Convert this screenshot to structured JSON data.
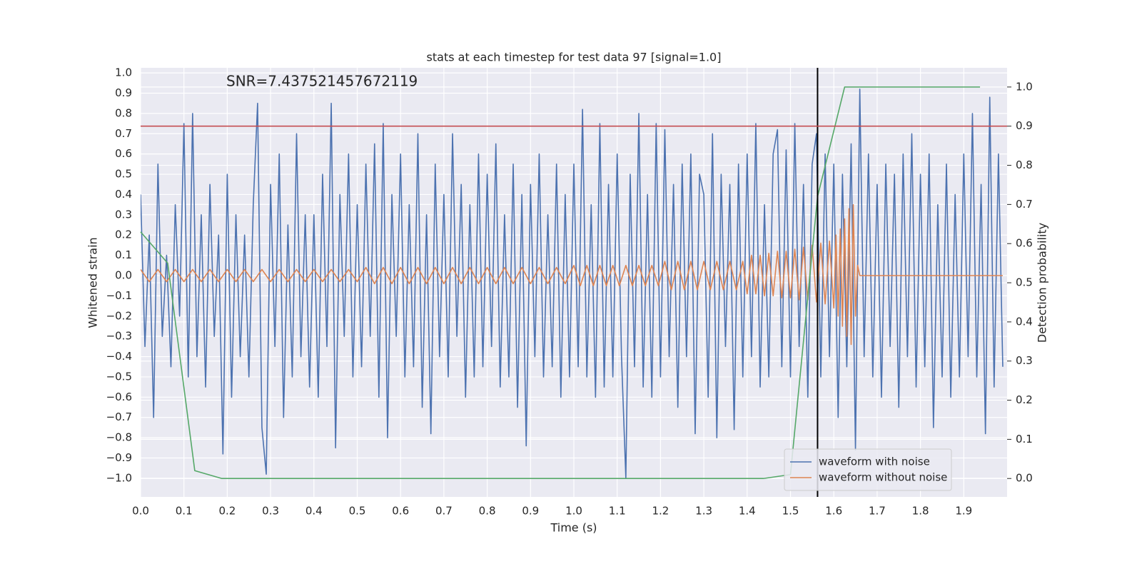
{
  "chart_data": {
    "type": "line",
    "title": "stats at each timestep for test data 97 [signal=1.0]",
    "annotation": "SNR=7.437521457672119",
    "xlabel": "Time (s)",
    "ylabel": "Whitened strain",
    "y2label": "Detection probability",
    "xlim": [
      0,
      2
    ],
    "ylim": [
      -1.092,
      1.025
    ],
    "y2lim": [
      -0.047,
      1.049
    ],
    "grid": true,
    "legend": "lower right",
    "xticks": [
      {
        "value": 0,
        "label": "0.0"
      },
      {
        "value": 0.1,
        "label": "0.1"
      },
      {
        "value": 0.2,
        "label": "0.2"
      },
      {
        "value": 0.3,
        "label": "0.3"
      },
      {
        "value": 0.4,
        "label": "0.4"
      },
      {
        "value": 0.5,
        "label": "0.5"
      },
      {
        "value": 0.6,
        "label": "0.6"
      },
      {
        "value": 0.7,
        "label": "0.7"
      },
      {
        "value": 0.8,
        "label": "0.8"
      },
      {
        "value": 0.9,
        "label": "0.9"
      },
      {
        "value": 1,
        "label": "1.0"
      },
      {
        "value": 1.1,
        "label": "1.1"
      },
      {
        "value": 1.2,
        "label": "1.2"
      },
      {
        "value": 1.3,
        "label": "1.3"
      },
      {
        "value": 1.4,
        "label": "1.4"
      },
      {
        "value": 1.5,
        "label": "1.5"
      },
      {
        "value": 1.6,
        "label": "1.6"
      },
      {
        "value": 1.7,
        "label": "1.7"
      },
      {
        "value": 1.8,
        "label": "1.8"
      },
      {
        "value": 1.9,
        "label": "1.9"
      }
    ],
    "yticks": [
      {
        "value": -1,
        "label": "−1.0"
      },
      {
        "value": -0.9,
        "label": "−0.9"
      },
      {
        "value": -0.8,
        "label": "−0.8"
      },
      {
        "value": -0.7,
        "label": "−0.7"
      },
      {
        "value": -0.6,
        "label": "−0.6"
      },
      {
        "value": -0.5,
        "label": "−0.5"
      },
      {
        "value": -0.4,
        "label": "−0.4"
      },
      {
        "value": -0.3,
        "label": "−0.3"
      },
      {
        "value": -0.2,
        "label": "−0.2"
      },
      {
        "value": -0.1,
        "label": "−0.1"
      },
      {
        "value": 0,
        "label": "0.0"
      },
      {
        "value": 0.1,
        "label": "0.1"
      },
      {
        "value": 0.2,
        "label": "0.2"
      },
      {
        "value": 0.3,
        "label": "0.3"
      },
      {
        "value": 0.4,
        "label": "0.4"
      },
      {
        "value": 0.5,
        "label": "0.5"
      },
      {
        "value": 0.6,
        "label": "0.6"
      },
      {
        "value": 0.7,
        "label": "0.7"
      },
      {
        "value": 0.8,
        "label": "0.8"
      },
      {
        "value": 0.9,
        "label": "0.9"
      },
      {
        "value": 1,
        "label": "1.0"
      }
    ],
    "y2ticks": [
      {
        "value": 0,
        "label": "0.0"
      },
      {
        "value": 0.1,
        "label": "0.1"
      },
      {
        "value": 0.2,
        "label": "0.2"
      },
      {
        "value": 0.3,
        "label": "0.3"
      },
      {
        "value": 0.4,
        "label": "0.4"
      },
      {
        "value": 0.5,
        "label": "0.5"
      },
      {
        "value": 0.6,
        "label": "0.6"
      },
      {
        "value": 0.7,
        "label": "0.7"
      },
      {
        "value": 0.8,
        "label": "0.8"
      },
      {
        "value": 0.9,
        "label": "0.9"
      },
      {
        "value": 1,
        "label": "1.0"
      }
    ],
    "hlines": [
      {
        "axis": "y2",
        "value": 0.9,
        "color": "#c44e52"
      }
    ],
    "vlines": [
      {
        "value": 1.5625,
        "color": "#000000"
      }
    ],
    "series": [
      {
        "name": "waveform with noise",
        "color": "#4c72b0",
        "x": [
          0,
          0.01,
          0.02,
          0.03,
          0.04,
          0.05,
          0.06,
          0.07,
          0.08,
          0.09,
          0.1,
          0.11,
          0.12,
          0.13,
          0.14,
          0.15,
          0.16,
          0.17,
          0.18,
          0.19,
          0.2,
          0.21,
          0.22,
          0.23,
          0.24,
          0.25,
          0.26,
          0.27,
          0.28,
          0.29,
          0.3,
          0.31,
          0.32,
          0.33,
          0.34,
          0.35,
          0.36,
          0.37,
          0.38,
          0.39,
          0.4,
          0.41,
          0.42,
          0.43,
          0.44,
          0.45,
          0.46,
          0.47,
          0.48,
          0.49,
          0.5,
          0.51,
          0.52,
          0.53,
          0.54,
          0.55,
          0.56,
          0.57,
          0.58,
          0.59,
          0.6,
          0.61,
          0.62,
          0.63,
          0.64,
          0.65,
          0.66,
          0.67,
          0.68,
          0.69,
          0.7,
          0.71,
          0.72,
          0.73,
          0.74,
          0.75,
          0.76,
          0.77,
          0.78,
          0.79,
          0.8,
          0.81,
          0.82,
          0.83,
          0.84,
          0.85,
          0.86,
          0.87,
          0.88,
          0.89,
          0.9,
          0.91,
          0.92,
          0.93,
          0.94,
          0.95,
          0.96,
          0.97,
          0.98,
          0.99,
          1,
          1.01,
          1.02,
          1.03,
          1.04,
          1.05,
          1.06,
          1.07,
          1.08,
          1.09,
          1.1,
          1.11,
          1.12,
          1.13,
          1.14,
          1.15,
          1.16,
          1.17,
          1.18,
          1.19,
          1.2,
          1.21,
          1.22,
          1.23,
          1.24,
          1.25,
          1.26,
          1.27,
          1.28,
          1.29,
          1.3,
          1.31,
          1.32,
          1.33,
          1.34,
          1.35,
          1.36,
          1.37,
          1.38,
          1.39,
          1.4,
          1.41,
          1.42,
          1.43,
          1.44,
          1.45,
          1.46,
          1.47,
          1.48,
          1.49,
          1.5,
          1.51,
          1.52,
          1.53,
          1.54,
          1.55,
          1.56,
          1.57,
          1.58,
          1.59,
          1.6,
          1.61,
          1.62,
          1.63,
          1.64,
          1.65,
          1.66,
          1.67,
          1.68,
          1.69,
          1.7,
          1.71,
          1.72,
          1.73,
          1.74,
          1.75,
          1.76,
          1.77,
          1.78,
          1.79,
          1.8,
          1.81,
          1.82,
          1.83,
          1.84,
          1.85,
          1.86,
          1.87,
          1.88,
          1.89,
          1.9,
          1.91,
          1.92,
          1.93,
          1.94,
          1.95,
          1.96,
          1.97,
          1.98,
          1.99
        ],
        "values": [
          0.4,
          -0.35,
          0.2,
          -0.7,
          0.55,
          -0.3,
          0.1,
          -0.45,
          0.35,
          -0.2,
          0.75,
          -0.5,
          0.8,
          -0.4,
          0.3,
          -0.55,
          0.45,
          -0.3,
          0.2,
          -0.88,
          0.5,
          -0.6,
          0.3,
          -0.4,
          0.2,
          -0.5,
          0.35,
          0.85,
          -0.75,
          -0.98,
          0.45,
          -0.35,
          0.6,
          -0.7,
          0.25,
          -0.5,
          0.7,
          -0.4,
          0.3,
          -0.55,
          0.3,
          -0.6,
          0.5,
          -0.35,
          0.85,
          -0.85,
          0.4,
          -0.3,
          0.6,
          -0.5,
          0.35,
          -0.45,
          0.55,
          -0.3,
          0.65,
          -0.6,
          0.75,
          -0.8,
          0.4,
          -0.3,
          0.6,
          -0.5,
          0.35,
          -0.45,
          0.7,
          -0.65,
          0.3,
          -0.78,
          0.55,
          -0.4,
          0.4,
          -0.5,
          0.7,
          -0.3,
          0.45,
          -0.6,
          0.35,
          -0.5,
          0.6,
          -0.45,
          0.5,
          -0.35,
          0.65,
          -0.55,
          0.3,
          -0.5,
          0.55,
          -0.65,
          0.4,
          -0.84,
          0.45,
          -0.4,
          0.6,
          -0.5,
          0.3,
          -0.45,
          0.55,
          -0.6,
          0.4,
          -0.5,
          0.55,
          -0.45,
          0.82,
          -0.5,
          0.35,
          -0.6,
          0.75,
          -0.55,
          0.45,
          -0.5,
          0.6,
          -0.4,
          -1.0,
          0.5,
          -0.45,
          0.8,
          -0.55,
          0.4,
          -0.6,
          0.75,
          -0.5,
          0.72,
          -0.4,
          0.45,
          -0.65,
          0.55,
          -0.4,
          0.6,
          -0.78,
          0.5,
          0.4,
          -0.6,
          0.7,
          -0.8,
          0.5,
          -0.35,
          0.45,
          -0.76,
          0.55,
          -0.5,
          0.6,
          -0.4,
          0.75,
          -0.55,
          0.35,
          -0.5,
          0.6,
          0.72,
          -0.45,
          0.62,
          -0.5,
          0.75,
          -0.35,
          0.45,
          -0.6,
          0.55,
          0.7,
          -0.5,
          0.6,
          -0.4,
          0.55,
          -0.7,
          0.5,
          -0.45,
          0.65,
          -0.86,
          0.92,
          -0.4,
          0.6,
          -0.5,
          0.45,
          -0.6,
          0.55,
          -0.35,
          0.5,
          -0.65,
          0.6,
          -0.4,
          0.7,
          -0.55,
          0.5,
          -0.45,
          0.6,
          -0.75,
          0.35,
          -0.5,
          0.55,
          -0.6,
          0.4,
          -0.5,
          0.6,
          -0.4,
          0.8,
          -0.5,
          0.45,
          -0.78,
          0.88,
          -0.55,
          0.6,
          -0.45
        ]
      },
      {
        "name": "waveform without noise",
        "color": "#dd8452",
        "x": [
          0,
          0.02,
          0.04,
          0.06,
          0.08,
          0.1,
          0.12,
          0.14,
          0.16,
          0.18,
          0.2,
          0.22,
          0.24,
          0.26,
          0.28,
          0.3,
          0.32,
          0.34,
          0.36,
          0.38,
          0.4,
          0.42,
          0.44,
          0.46,
          0.48,
          0.5,
          0.52,
          0.54,
          0.56,
          0.58,
          0.6,
          0.62,
          0.64,
          0.66,
          0.68,
          0.7,
          0.72,
          0.74,
          0.76,
          0.78,
          0.8,
          0.82,
          0.84,
          0.86,
          0.88,
          0.9,
          0.92,
          0.94,
          0.96,
          0.98,
          1,
          1.015,
          1.03,
          1.045,
          1.06,
          1.075,
          1.09,
          1.105,
          1.12,
          1.135,
          1.15,
          1.165,
          1.18,
          1.195,
          1.21,
          1.225,
          1.24,
          1.255,
          1.27,
          1.285,
          1.3,
          1.315,
          1.33,
          1.345,
          1.36,
          1.375,
          1.39,
          1.4,
          1.41,
          1.42,
          1.43,
          1.44,
          1.45,
          1.46,
          1.47,
          1.48,
          1.49,
          1.5,
          1.51,
          1.52,
          1.53,
          1.54,
          1.55,
          1.56,
          1.57,
          1.58,
          1.59,
          1.6,
          1.605,
          1.61,
          1.615,
          1.62,
          1.625,
          1.63,
          1.635,
          1.64,
          1.645,
          1.65,
          1.655,
          1.66,
          1.99
        ],
        "values": [
          0.03,
          -0.03,
          0.03,
          -0.03,
          0.03,
          -0.03,
          0.03,
          -0.03,
          0.03,
          -0.03,
          0.03,
          -0.03,
          0.03,
          -0.03,
          0.03,
          -0.03,
          0.03,
          -0.03,
          0.03,
          -0.03,
          0.03,
          -0.03,
          0.03,
          -0.03,
          0.03,
          -0.03,
          0.04,
          -0.04,
          0.04,
          -0.04,
          0.04,
          -0.04,
          0.04,
          -0.04,
          0.04,
          -0.04,
          0.04,
          -0.04,
          0.04,
          -0.04,
          0.04,
          -0.04,
          0.04,
          -0.04,
          0.04,
          -0.04,
          0.04,
          -0.04,
          0.04,
          -0.04,
          0.05,
          -0.05,
          0.05,
          -0.05,
          0.05,
          -0.05,
          0.05,
          -0.05,
          0.05,
          -0.05,
          0.05,
          -0.05,
          0.05,
          -0.05,
          0.07,
          -0.07,
          0.07,
          -0.07,
          0.07,
          -0.07,
          0.07,
          -0.07,
          0.07,
          -0.07,
          0.07,
          -0.07,
          0.07,
          -0.09,
          0.1,
          -0.09,
          0.1,
          -0.1,
          0.11,
          -0.1,
          0.12,
          -0.11,
          0.12,
          -0.11,
          0.13,
          -0.12,
          0.14,
          -0.12,
          0.15,
          -0.13,
          0.16,
          -0.14,
          0.17,
          -0.16,
          0.2,
          -0.2,
          0.23,
          -0.25,
          0.28,
          -0.3,
          0.33,
          -0.34,
          0.35,
          -0.2,
          0.05,
          0,
          0
        ]
      },
      {
        "axis": "y2",
        "color": "#55a868",
        "x": [
          0,
          0.0625,
          0.125,
          0.1875,
          0.25,
          0.3125,
          0.375,
          0.4375,
          0.5,
          0.5625,
          0.625,
          0.6875,
          0.75,
          0.8125,
          0.875,
          0.9375,
          1,
          1.0625,
          1.125,
          1.1875,
          1.25,
          1.3125,
          1.375,
          1.4375,
          1.5,
          1.5625,
          1.625,
          1.6875,
          1.75,
          1.8125,
          1.875,
          1.9375
        ],
        "values": [
          0.63,
          0.55,
          0.02,
          0,
          0,
          0,
          0,
          0,
          0,
          0,
          0,
          0,
          0,
          0,
          0,
          0,
          0,
          0,
          0,
          0,
          0,
          0,
          0,
          0,
          0.01,
          0.72,
          1,
          1,
          1,
          1,
          1,
          1
        ]
      }
    ]
  }
}
